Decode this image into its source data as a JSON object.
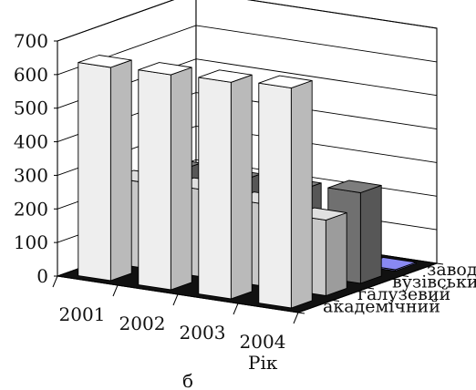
{
  "chart_data": {
    "type": "bar",
    "subtype": "3d-clustered-depth",
    "categories": [
      "2001",
      "2002",
      "2003",
      "2004"
    ],
    "series": [
      {
        "name": "академічний",
        "values": [
          635,
          640,
          645,
          655
        ],
        "color": "#eeeeee"
      },
      {
        "name": "галузевий",
        "values": [
          255,
          260,
          245,
          225
        ],
        "color": "#c8c8c8"
      },
      {
        "name": "вузівський",
        "values": [
          255,
          250,
          250,
          270
        ],
        "color": "#707070"
      },
      {
        "name": "заводський",
        "values": [
          5,
          4,
          4,
          4
        ],
        "color": "#7a7ad8"
      }
    ],
    "ylim": [
      0,
      700
    ],
    "yticks": [
      "0",
      "100",
      "200",
      "300",
      "400",
      "500",
      "600",
      "700"
    ],
    "xlabel": "Рік",
    "ylabel": "",
    "grid": true,
    "floor_color": "#111111"
  },
  "caption": "б"
}
